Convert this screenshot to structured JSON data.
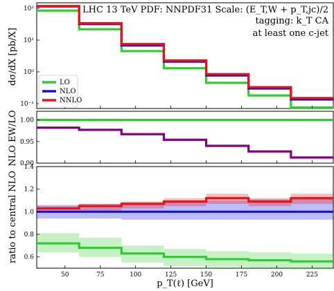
{
  "chart_data": {
    "type": "line",
    "x_bins": [
      30,
      60,
      90,
      120,
      150,
      180,
      210,
      240
    ],
    "xlim": [
      30,
      240
    ],
    "x_ticks": [
      50,
      75,
      100,
      125,
      150,
      175,
      200,
      225
    ],
    "xlabel": "p_T(ℓ) [GeV]",
    "annotation": {
      "line1": "LHC 13 TeV PDF: NNPDF31 Scale: (E_T,W + p_T,jc)/2",
      "line2": "tagging: k_T CA",
      "line3": "at least one c-jet"
    },
    "legend": {
      "placement": "lower-left of top panel",
      "entries": [
        {
          "name": "LO",
          "color": "#2ecc2e"
        },
        {
          "name": "NLO",
          "color": "#1010e0"
        },
        {
          "name": "NNLO",
          "color": "#ee1111"
        }
      ]
    },
    "panels": [
      {
        "id": "top",
        "ylabel": "dσ/dX [pb/X]",
        "scale": "log",
        "ylim": [
          0.07,
          150
        ],
        "y_ticks": [
          {
            "v": 0.1,
            "label": "10⁻¹"
          },
          {
            "v": 1,
            "label": "10⁰"
          },
          {
            "v": 10,
            "label": "10¹"
          },
          {
            "v": 100,
            "label": "10²"
          }
        ],
        "series": [
          {
            "name": "LO",
            "color": "#2ecc2e",
            "values": [
              85,
              22,
              4.5,
              1.3,
              0.45,
              0.18,
              0.075
            ]
          },
          {
            "name": "NLO",
            "color": "#1010e0",
            "values": [
              115,
              32,
              6.8,
              2.1,
              0.77,
              0.3,
              0.135
            ]
          },
          {
            "name": "NNLO",
            "color": "#ee1111",
            "values": [
              118,
              34,
              7.5,
              2.3,
              0.85,
              0.33,
              0.15
            ]
          }
        ]
      },
      {
        "id": "mid",
        "ylabel": "NLO EW/LO",
        "scale": "linear",
        "ylim": [
          0.9,
          1.02
        ],
        "y_ticks": [
          {
            "v": 0.9,
            "label": "0.90"
          },
          {
            "v": 0.95,
            "label": "0.95"
          },
          {
            "v": 1.0,
            "label": "1.00"
          }
        ],
        "series": [
          {
            "name": "LO",
            "color": "#2ecc2e",
            "values": [
              1.0,
              1.0,
              1.0,
              1.0,
              1.0,
              1.0,
              1.0
            ]
          },
          {
            "name": "NLO EW",
            "color": "#800080",
            "values": [
              0.982,
              0.977,
              0.967,
              0.954,
              0.94,
              0.927,
              0.913
            ]
          }
        ]
      },
      {
        "id": "bottom",
        "ylabel": "ratio to central NLO",
        "scale": "linear",
        "ylim": [
          0.5,
          1.4
        ],
        "y_ticks": [
          {
            "v": 0.6,
            "label": "0.6"
          },
          {
            "v": 0.8,
            "label": "0.8"
          },
          {
            "v": 1.0,
            "label": "1.0"
          },
          {
            "v": 1.2,
            "label": "1.2"
          },
          {
            "v": 1.4,
            "label": "1.4"
          }
        ],
        "series": [
          {
            "name": "LO",
            "color": "#2ecc2e",
            "values": [
              0.72,
              0.68,
              0.63,
              0.6,
              0.58,
              0.57,
              0.56
            ],
            "band_lo": [
              0.64,
              0.6,
              0.55,
              0.52,
              0.51,
              0.5,
              0.49
            ],
            "band_hi": [
              0.81,
              0.77,
              0.7,
              0.67,
              0.65,
              0.64,
              0.63
            ]
          },
          {
            "name": "NLO",
            "color": "#1010e0",
            "values": [
              1.0,
              1.0,
              1.0,
              1.0,
              1.0,
              1.0,
              1.0
            ],
            "band_lo": [
              0.94,
              0.94,
              0.93,
              0.93,
              0.93,
              0.93,
              0.93
            ],
            "band_hi": [
              1.06,
              1.07,
              1.08,
              1.09,
              1.1,
              1.11,
              1.12
            ]
          },
          {
            "name": "NNLO",
            "color": "#ee1111",
            "values": [
              1.03,
              1.05,
              1.07,
              1.09,
              1.12,
              1.09,
              1.12
            ],
            "band_lo": [
              1.0,
              1.01,
              1.03,
              1.05,
              1.07,
              1.05,
              1.07
            ],
            "band_hi": [
              1.05,
              1.07,
              1.09,
              1.12,
              1.16,
              1.12,
              1.16
            ]
          }
        ]
      }
    ]
  }
}
